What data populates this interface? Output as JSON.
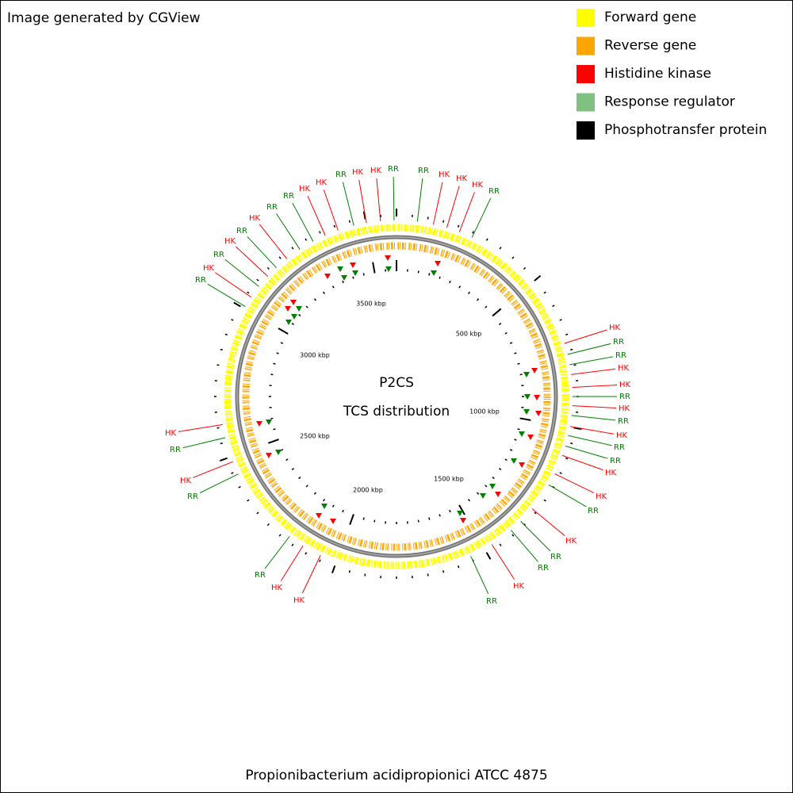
{
  "header": "Image generated by CGView",
  "legend": [
    "Forward gene",
    "Reverse gene",
    "Histidine kinase",
    "Response regulator",
    "Phosphotransfer protein"
  ],
  "center": [
    "P2CS",
    "TCS distribution"
  ],
  "scale_labels": [
    "500 kbp",
    "1000 kbp",
    "1500 kbp",
    "2000 kbp",
    "2500 kbp",
    "3000 kbp",
    "3500 kbp"
  ],
  "feature_labels": [
    "RR",
    "HK",
    "RR",
    "HK",
    "RR",
    "HK",
    "RR",
    "RR",
    "HK",
    "HK",
    "RR",
    "HK",
    "HK",
    "RR",
    "RR",
    "HK",
    "HK",
    "HK",
    "RR",
    "HK",
    "RR",
    "RR",
    "HK",
    "HK",
    "RR",
    "HK",
    "RR",
    "HK",
    "RR",
    "RR",
    "HK",
    "HK",
    "RR",
    "HK",
    "RR",
    "RR",
    "HK",
    "RR",
    "HK",
    "RR",
    "HK",
    "RR",
    "RR",
    "HK",
    "HK"
  ],
  "footer": "Propionibacterium acidipropionici ATCC 4875"
}
